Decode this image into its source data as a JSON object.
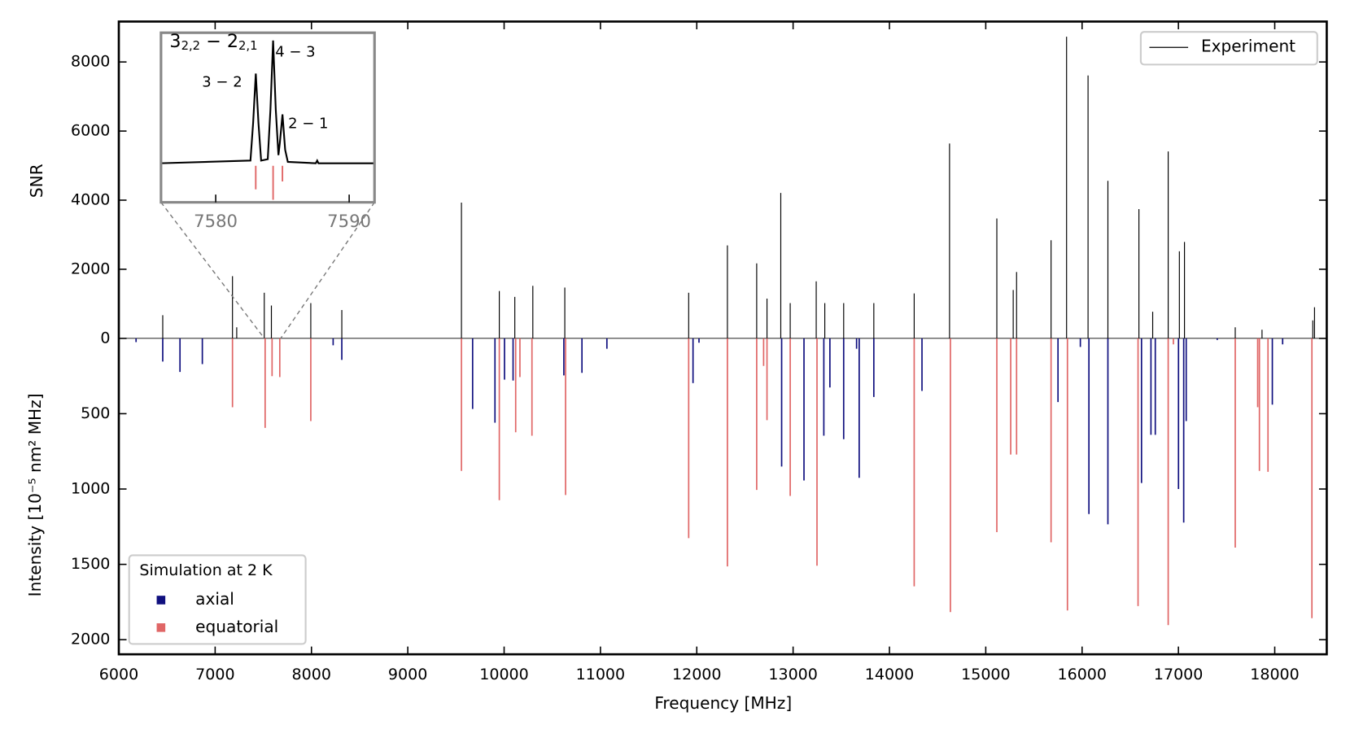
{
  "chart_data": [
    {
      "type": "stick",
      "xlabel": "Frequency [MHz]",
      "ylabel": "SNR",
      "y2label": "Intensity [10⁻⁵ nm² MHz]",
      "xlim": [
        6000,
        18540
      ],
      "xticks": [
        6000,
        7000,
        8000,
        9000,
        10000,
        11000,
        12000,
        13000,
        14000,
        15000,
        16000,
        17000,
        18000
      ],
      "ylim": [
        0,
        9170
      ],
      "yticks": [
        0,
        2000,
        4000,
        6000,
        8000
      ],
      "y2lim": [
        0,
        2097
      ],
      "y2ticks": [
        500,
        1000,
        1500,
        2000
      ],
      "y2_inverted": true,
      "legends": [
        {
          "loc": "upper right"
        },
        {
          "title": "Simulation at 2 K",
          "loc": "lower left"
        }
      ],
      "series": [
        {
          "name": "Experiment",
          "color": "#000000",
          "legend": 0,
          "x": [
            6456,
            7180,
            7224,
            7510,
            7584,
            7993,
            8315,
            9557,
            9950,
            10111,
            10298,
            10630,
            11916,
            12318,
            12622,
            12729,
            12872,
            12970,
            13240,
            13329,
            13525,
            13838,
            14257,
            14624,
            15115,
            15285,
            15320,
            15678,
            15839,
            16062,
            16268,
            16590,
            16733,
            16894,
            17010,
            17063,
            17590,
            17868,
            18395,
            18413
          ],
          "values": [
            670,
            1800,
            320,
            1320,
            950,
            1020,
            820,
            3930,
            1370,
            1200,
            1520,
            1470,
            1320,
            2690,
            2170,
            1150,
            4210,
            1020,
            1650,
            1020,
            1020,
            1020,
            1300,
            5640,
            3470,
            1400,
            1920,
            2840,
            8730,
            7610,
            4560,
            3740,
            770,
            5410,
            2520,
            2790,
            320,
            250,
            520,
            900
          ]
        },
        {
          "name": "axial",
          "color": "#10107f",
          "axis": "y2",
          "legend": 1,
          "x": [
            6179,
            6456,
            6635,
            6867,
            8225,
            8315,
            9673,
            9905,
            10004,
            10093,
            10620,
            10808,
            11067,
            11961,
            12023,
            12881,
            13113,
            13319,
            13382,
            13525,
            13659,
            13686,
            13838,
            14338,
            15750,
            15982,
            16071,
            16268,
            16617,
            16715,
            16760,
            17001,
            17055,
            17081,
            17403,
            17975,
            18082
          ],
          "values": [
            25,
            154,
            223,
            171,
            46,
            143,
            469,
            560,
            274,
            280,
            246,
            229,
            69,
            297,
            29,
            851,
            943,
            646,
            326,
            669,
            69,
            926,
            389,
            349,
            423,
            57,
            1166,
            1234,
            960,
            640,
            640,
            1000,
            1223,
            549,
            11,
            440,
            40
          ]
        },
        {
          "name": "equatorial",
          "color": "#e06666",
          "axis": "y2",
          "legend": 1,
          "x": [
            7180,
            7519,
            7591,
            7671,
            7993,
            9557,
            9950,
            10120,
            10164,
            10289,
            10638,
            11916,
            12318,
            12622,
            12694,
            12729,
            12970,
            13248,
            14257,
            14633,
            15115,
            15259,
            15320,
            15678,
            15848,
            16581,
            16894,
            16948,
            17590,
            17823,
            17841,
            17930,
            18386
          ],
          "values": [
            457,
            594,
            251,
            257,
            549,
            880,
            1074,
            623,
            257,
            646,
            1040,
            1326,
            1514,
            1006,
            183,
            543,
            1046,
            1509,
            1646,
            1817,
            1286,
            771,
            771,
            1354,
            1806,
            1777,
            1903,
            40,
            1389,
            457,
            880,
            886,
            1857
          ]
        }
      ]
    },
    {
      "type": "inset",
      "title_parts": [
        {
          "text": "3"
        },
        {
          "text": "2,2",
          "sub": true
        },
        {
          "text": " − 2"
        },
        {
          "text": "2,1",
          "sub": true
        }
      ],
      "xlim": [
        7575.9,
        7591.9
      ],
      "xticks": [
        7580,
        7590
      ],
      "ylim": [
        -2920,
        9740
      ],
      "annotations": [
        "3 − 2",
        "4 − 3",
        "2 − 1"
      ],
      "series": [
        {
          "type": "line",
          "color": "#000000",
          "x": [
            7575.9,
            7582.6,
            7582.8,
            7583.0,
            7583.2,
            7583.4,
            7583.9,
            7584.1,
            7584.3,
            7584.5,
            7584.7,
            7584.8,
            7585.0,
            7585.2,
            7585.4,
            7587.5,
            7587.6,
            7587.7,
            7591.9
          ],
          "values": [
            0,
            200,
            3000,
            6690,
            3000,
            200,
            300,
            4000,
            9160,
            4000,
            600,
            1500,
            3640,
            1000,
            100,
            0,
            200,
            0,
            0
          ]
        },
        {
          "type": "stick",
          "color": "#e06666",
          "x": [
            7583.0,
            7584.3,
            7585.0
          ],
          "values": [
            -1950,
            -2730,
            -1360
          ]
        }
      ]
    }
  ]
}
